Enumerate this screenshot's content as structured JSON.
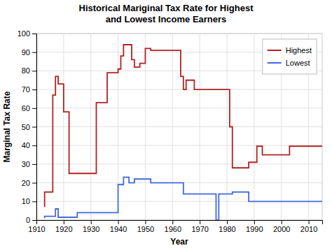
{
  "chart_data": {
    "type": "line",
    "title": "Historical Mariginal Tax Rate for Highest\nand Lowest Income Earners",
    "x_label": "Year",
    "y_label": "Marginal Tax Rate",
    "xlim": [
      1910,
      2015
    ],
    "ylim": [
      0,
      100
    ],
    "xticks": [
      1910,
      1920,
      1930,
      1940,
      1950,
      1960,
      1970,
      1980,
      1990,
      2000,
      2010
    ],
    "yticks": [
      0,
      10,
      20,
      30,
      40,
      50,
      60,
      70,
      80,
      90,
      100
    ],
    "grid": true,
    "legend": "upper right",
    "line_style": "step-before",
    "series": [
      {
        "name": "Highest",
        "color": "#b22222",
        "x": [
          1913,
          1916,
          1917,
          1918,
          1919,
          1920,
          1922,
          1925,
          1932,
          1936,
          1940,
          1941,
          1942,
          1944,
          1945,
          1946,
          1948,
          1950,
          1952,
          1954,
          1963,
          1964,
          1965,
          1968,
          1970,
          1976,
          1981,
          1982,
          1987,
          1988,
          1990,
          1991,
          1993,
          2001,
          2003,
          2013,
          2015
        ],
        "values": [
          7,
          15,
          67,
          77,
          73,
          73,
          58,
          25,
          25,
          63,
          79,
          81,
          88,
          94,
          94,
          86,
          82,
          84,
          92,
          91,
          91,
          77,
          70,
          75,
          70,
          70,
          70,
          50,
          28,
          28,
          31,
          31,
          39.6,
          35,
          35,
          39.6,
          39.6
        ]
      },
      {
        "name": "Lowest",
        "color": "#4169e1",
        "x": [
          1913,
          1916,
          1917,
          1918,
          1925,
          1932,
          1940,
          1942,
          1944,
          1946,
          1948,
          1952,
          1954,
          1964,
          1965,
          1976,
          1977,
          1982,
          1987,
          1988,
          2001,
          2003,
          2013,
          2015
        ],
        "values": [
          1,
          2,
          2,
          6,
          1.5,
          4,
          4,
          19,
          23,
          20,
          22,
          22,
          20,
          20,
          14,
          14,
          0,
          14,
          15,
          15,
          10,
          10,
          10,
          10
        ]
      }
    ]
  }
}
